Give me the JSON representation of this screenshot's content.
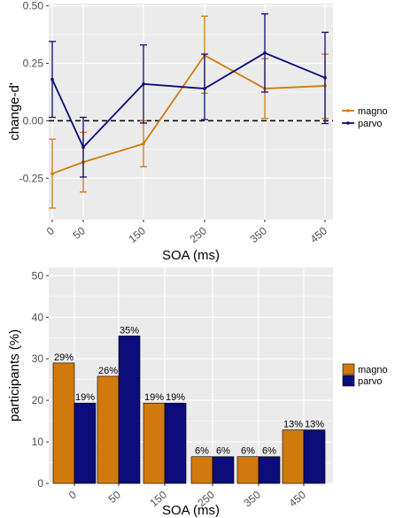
{
  "colors": {
    "magno": "#D07A0E",
    "parvo": "#0C0C7A",
    "panel": "#EBEBEB",
    "grid": "#FFFFFF"
  },
  "chart_data": [
    {
      "type": "line",
      "xlabel": "SOA (ms)",
      "ylabel": "change-d'",
      "x": [
        0,
        50,
        150,
        250,
        350,
        450
      ],
      "x_tick_labels": [
        "0",
        "50",
        "150",
        "250",
        "350",
        "450"
      ],
      "y_ticks": [
        -0.25,
        0,
        0.25,
        0.5
      ],
      "y_tick_labels": [
        "-0.25",
        "0.00",
        "0.25",
        "0.50"
      ],
      "ylim": [
        -0.43,
        0.51
      ],
      "reference_line": 0,
      "legend": [
        "magno",
        "parvo"
      ],
      "legend_position": "right",
      "grid": true,
      "series": [
        {
          "name": "magno",
          "values": [
            -0.23,
            -0.18,
            -0.1,
            0.285,
            0.14,
            0.152
          ],
          "err_low": [
            -0.38,
            -0.31,
            -0.2,
            0.12,
            0.01,
            0.01
          ],
          "err_high": [
            -0.08,
            -0.05,
            0.0,
            0.455,
            0.27,
            0.29
          ]
        },
        {
          "name": "parvo",
          "values": [
            0.18,
            -0.115,
            0.16,
            0.14,
            0.295,
            0.187
          ],
          "err_low": [
            0.015,
            -0.245,
            -0.01,
            0.005,
            0.125,
            -0.012
          ],
          "err_high": [
            0.345,
            0.015,
            0.33,
            0.29,
            0.465,
            0.385
          ]
        }
      ]
    },
    {
      "type": "bar",
      "xlabel": "SOA (ms)",
      "ylabel": "participants (%)",
      "categories": [
        "0",
        "50",
        "150",
        "250",
        "350",
        "450"
      ],
      "y_ticks": [
        0,
        10,
        20,
        30,
        40,
        50
      ],
      "y_tick_labels": [
        "0",
        "10",
        "20",
        "30",
        "40",
        "50"
      ],
      "ylim": [
        0,
        52
      ],
      "legend": [
        "magno",
        "parvo"
      ],
      "legend_position": "right",
      "grid": true,
      "series": [
        {
          "name": "magno",
          "values": [
            29,
            26,
            19,
            6,
            6,
            13
          ],
          "labels": [
            "29%",
            "26%",
            "19%",
            "6%",
            "6%",
            "13%"
          ]
        },
        {
          "name": "parvo",
          "values": [
            19,
            35,
            19,
            6,
            6,
            13
          ],
          "labels": [
            "19%",
            "35%",
            "19%",
            "6%",
            "6%",
            "13%"
          ]
        }
      ],
      "plotted_values": {
        "magno": [
          29,
          25.8,
          19.35,
          6.45,
          6.45,
          12.9
        ],
        "parvo": [
          19.35,
          35.5,
          19.35,
          6.45,
          6.45,
          12.9
        ]
      }
    }
  ]
}
